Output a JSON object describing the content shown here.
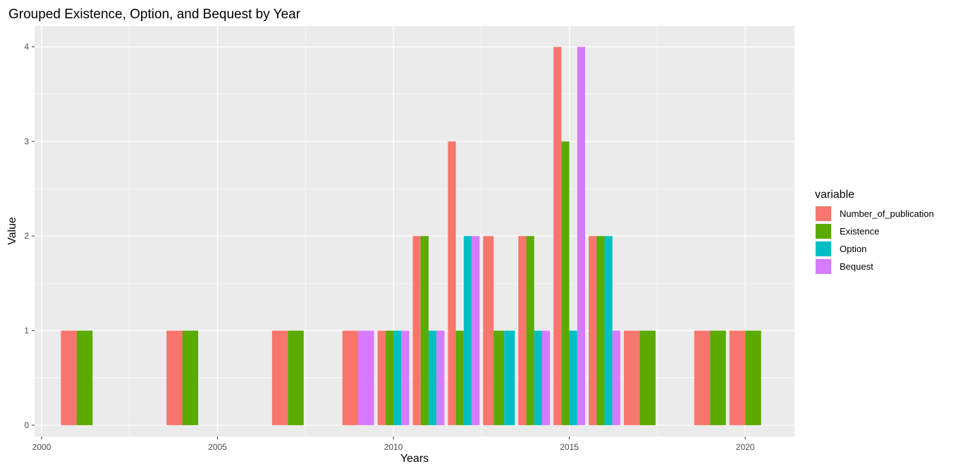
{
  "chart_data": {
    "type": "bar",
    "title": "Grouped Existence, Option, and Bequest by Year",
    "xlabel": "Years",
    "ylabel": "Value",
    "xlim": [
      1999.8,
      2021.4
    ],
    "ylim": [
      -0.12,
      4.22
    ],
    "x_ticks": [
      2000,
      2005,
      2010,
      2015,
      2020
    ],
    "y_ticks": [
      0,
      1,
      2,
      3,
      4
    ],
    "grid": true,
    "legend": {
      "title": "variable",
      "position": "right"
    },
    "bar_group_width": 0.9,
    "series": [
      {
        "name": "Number_of_publication",
        "color": "#F8766D",
        "points": [
          [
            2001,
            1
          ],
          [
            2004,
            1
          ],
          [
            2007,
            1
          ],
          [
            2009,
            1
          ],
          [
            2010,
            1
          ],
          [
            2011,
            2
          ],
          [
            2012,
            3
          ],
          [
            2013,
            2
          ],
          [
            2014,
            2
          ],
          [
            2015,
            4
          ],
          [
            2016,
            2
          ],
          [
            2017,
            1
          ],
          [
            2019,
            1
          ],
          [
            2020,
            1
          ]
        ]
      },
      {
        "name": "Existence",
        "color": "#5BAA00",
        "points": [
          [
            2001,
            1
          ],
          [
            2004,
            1
          ],
          [
            2007,
            1
          ],
          [
            2010,
            1
          ],
          [
            2011,
            2
          ],
          [
            2012,
            1
          ],
          [
            2013,
            1
          ],
          [
            2014,
            2
          ],
          [
            2015,
            3
          ],
          [
            2016,
            2
          ],
          [
            2017,
            1
          ],
          [
            2019,
            1
          ],
          [
            2020,
            1
          ]
        ]
      },
      {
        "name": "Option",
        "color": "#00BFC4",
        "points": [
          [
            2010,
            1
          ],
          [
            2011,
            1
          ],
          [
            2012,
            2
          ],
          [
            2013,
            1
          ],
          [
            2014,
            1
          ],
          [
            2015,
            1
          ],
          [
            2016,
            2
          ]
        ]
      },
      {
        "name": "Bequest",
        "color": "#D67BFF",
        "points": [
          [
            2009,
            1
          ],
          [
            2010,
            1
          ],
          [
            2011,
            1
          ],
          [
            2012,
            2
          ],
          [
            2014,
            1
          ],
          [
            2015,
            4
          ],
          [
            2016,
            1
          ]
        ]
      }
    ]
  }
}
